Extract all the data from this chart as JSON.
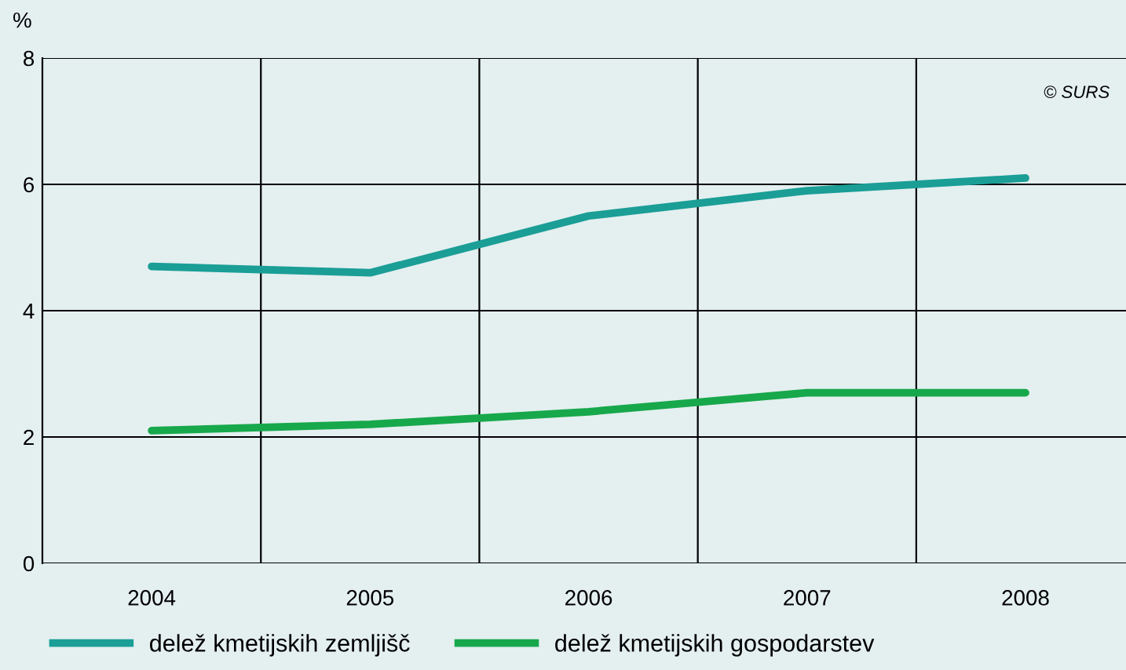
{
  "chart_data": {
    "type": "line",
    "ylabel": "%",
    "categories": [
      "2004",
      "2005",
      "2006",
      "2007",
      "2008"
    ],
    "series": [
      {
        "name": "delež kmetijskih zemljišč",
        "color": "#1a9e96",
        "values": [
          4.7,
          4.6,
          5.5,
          5.9,
          6.1
        ]
      },
      {
        "name": "delež kmetijskih gospodarstev",
        "color": "#17a84b",
        "values": [
          2.1,
          2.2,
          2.4,
          2.7,
          2.7
        ]
      }
    ],
    "ylim": [
      0,
      8
    ],
    "yticks": [
      0,
      2,
      4,
      6,
      8
    ],
    "grid": true,
    "legend": "bottom",
    "marker": "none",
    "line_style": "solid",
    "annotations": [
      "© SURS"
    ]
  }
}
